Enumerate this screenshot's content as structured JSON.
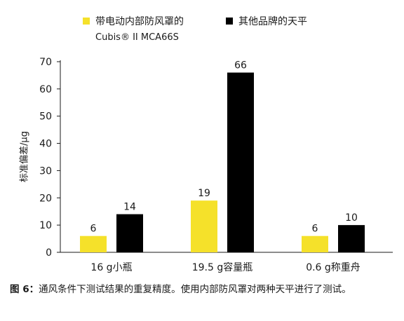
{
  "chart_data": {
    "type": "bar",
    "categories": [
      "16 g小瓶",
      "19.5 g容量瓶",
      "0.6 g称重舟"
    ],
    "series": [
      {
        "name": "带电动内部防风罩的 Cubis® II MCA66S",
        "color": "#f5e12a",
        "values": [
          6,
          19,
          6
        ]
      },
      {
        "name": "其他品牌的天平",
        "color": "#000000",
        "values": [
          14,
          66,
          10
        ]
      }
    ],
    "ylabel": "标准偏差/μg",
    "ylim": [
      0,
      70
    ],
    "yticks": [
      "0",
      "10",
      "20",
      "30",
      "40",
      "50",
      "60",
      "70"
    ],
    "grid": false,
    "legend_position": "top"
  },
  "legend": {
    "item1_line1": "带电动内部防风罩的",
    "item1_line2": "Cubis® II MCA66S",
    "item2": "其他品牌的天平"
  },
  "caption": {
    "label": "图 6：",
    "text": "通风条件下测试结果的重复精度。使用内部防风罩对两种天平进行了测试。"
  }
}
